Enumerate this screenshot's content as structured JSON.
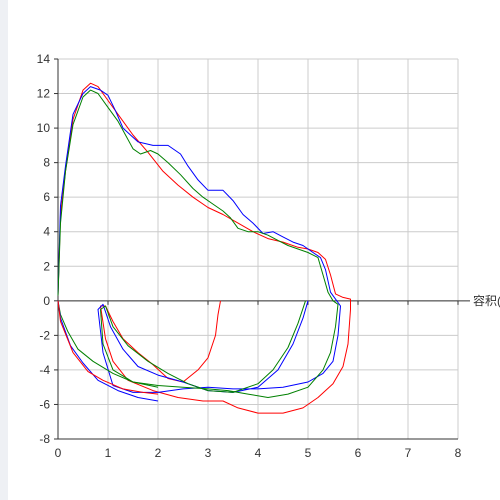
{
  "chart_data": {
    "type": "line",
    "xlabel": "容积(L)",
    "ylabel": "",
    "xlim": [
      0,
      8
    ],
    "ylim": [
      -8,
      14
    ],
    "x_ticks": [
      0,
      1,
      2,
      3,
      4,
      5,
      6,
      7,
      8
    ],
    "y_ticks": [
      -8,
      -6,
      -4,
      -2,
      0,
      2,
      4,
      6,
      8,
      10,
      12,
      14
    ],
    "grid": true,
    "legend": "none",
    "series": [
      {
        "color": "#ff0000",
        "points": [
          [
            0.0,
            0.3
          ],
          [
            0.05,
            5.0
          ],
          [
            0.15,
            7.5
          ],
          [
            0.3,
            10.5
          ],
          [
            0.5,
            12.2
          ],
          [
            0.65,
            12.6
          ],
          [
            0.8,
            12.4
          ],
          [
            1.0,
            11.6
          ],
          [
            1.2,
            10.8
          ],
          [
            1.5,
            9.6
          ],
          [
            1.8,
            8.6
          ],
          [
            2.1,
            7.5
          ],
          [
            2.4,
            6.7
          ],
          [
            2.7,
            6.0
          ],
          [
            3.0,
            5.4
          ],
          [
            3.3,
            5.0
          ],
          [
            3.6,
            4.5
          ],
          [
            3.9,
            4.0
          ],
          [
            4.2,
            3.6
          ],
          [
            4.5,
            3.4
          ],
          [
            4.8,
            3.1
          ],
          [
            5.0,
            3.0
          ],
          [
            5.2,
            2.8
          ],
          [
            5.35,
            2.4
          ],
          [
            5.45,
            1.5
          ],
          [
            5.55,
            0.4
          ],
          [
            5.7,
            0.2
          ],
          [
            5.85,
            0.1
          ],
          [
            5.85,
            -0.5
          ],
          [
            5.8,
            -2.5
          ],
          [
            5.7,
            -3.8
          ],
          [
            5.5,
            -4.8
          ],
          [
            5.2,
            -5.6
          ],
          [
            4.9,
            -6.2
          ],
          [
            4.5,
            -6.5
          ],
          [
            4.0,
            -6.5
          ],
          [
            3.6,
            -6.2
          ],
          [
            3.3,
            -5.8
          ],
          [
            2.9,
            -5.8
          ],
          [
            2.4,
            -5.6
          ],
          [
            1.9,
            -5.2
          ],
          [
            1.4,
            -4.6
          ],
          [
            1.1,
            -3.5
          ],
          [
            0.95,
            -2.2
          ],
          [
            0.85,
            -0.3
          ],
          [
            0.95,
            -0.3
          ],
          [
            1.1,
            -1.2
          ],
          [
            1.3,
            -2.2
          ],
          [
            1.6,
            -3.0
          ],
          [
            1.9,
            -3.7
          ],
          [
            2.2,
            -4.5
          ],
          [
            2.5,
            -4.7
          ],
          [
            2.8,
            -4.0
          ],
          [
            3.0,
            -3.3
          ],
          [
            3.15,
            -2.0
          ],
          [
            3.2,
            -0.8
          ],
          [
            3.25,
            0.0
          ]
        ]
      },
      {
        "color": "#0000ff",
        "points": [
          [
            0.0,
            0.3
          ],
          [
            0.05,
            5.5
          ],
          [
            0.15,
            7.8
          ],
          [
            0.3,
            10.8
          ],
          [
            0.5,
            12.0
          ],
          [
            0.65,
            12.4
          ],
          [
            0.85,
            12.2
          ],
          [
            1.0,
            11.9
          ],
          [
            1.15,
            11.0
          ],
          [
            1.3,
            10.0
          ],
          [
            1.6,
            9.2
          ],
          [
            1.9,
            9.0
          ],
          [
            2.2,
            9.0
          ],
          [
            2.45,
            8.5
          ],
          [
            2.6,
            7.8
          ],
          [
            2.8,
            7.0
          ],
          [
            3.0,
            6.4
          ],
          [
            3.3,
            6.4
          ],
          [
            3.5,
            5.8
          ],
          [
            3.7,
            5.0
          ],
          [
            3.9,
            4.5
          ],
          [
            4.1,
            3.9
          ],
          [
            4.3,
            4.0
          ],
          [
            4.5,
            3.7
          ],
          [
            4.7,
            3.4
          ],
          [
            4.9,
            3.2
          ],
          [
            5.1,
            2.8
          ],
          [
            5.25,
            2.5
          ],
          [
            5.35,
            1.8
          ],
          [
            5.45,
            0.5
          ],
          [
            5.55,
            0.1
          ],
          [
            5.65,
            -0.3
          ],
          [
            5.6,
            -2.0
          ],
          [
            5.5,
            -3.5
          ],
          [
            5.3,
            -4.2
          ],
          [
            5.0,
            -4.7
          ],
          [
            4.5,
            -5.0
          ],
          [
            4.0,
            -5.1
          ],
          [
            3.5,
            -5.1
          ],
          [
            3.0,
            -5.0
          ],
          [
            2.5,
            -5.1
          ],
          [
            2.0,
            -5.3
          ],
          [
            1.5,
            -5.3
          ],
          [
            1.1,
            -4.9
          ],
          [
            0.9,
            -3.0
          ],
          [
            0.8,
            -0.5
          ],
          [
            0.9,
            -0.2
          ],
          [
            1.05,
            -1.5
          ],
          [
            1.3,
            -2.8
          ],
          [
            1.6,
            -3.8
          ],
          [
            2.0,
            -4.3
          ],
          [
            2.5,
            -4.7
          ],
          [
            3.0,
            -5.2
          ],
          [
            3.5,
            -5.3
          ],
          [
            4.0,
            -5.0
          ],
          [
            4.4,
            -4.0
          ],
          [
            4.7,
            -2.5
          ],
          [
            4.9,
            -1.0
          ],
          [
            5.0,
            0.0
          ]
        ]
      },
      {
        "color": "#008000",
        "points": [
          [
            0.0,
            0.3
          ],
          [
            0.05,
            4.5
          ],
          [
            0.15,
            7.5
          ],
          [
            0.3,
            10.2
          ],
          [
            0.5,
            11.8
          ],
          [
            0.65,
            12.2
          ],
          [
            0.8,
            12.0
          ],
          [
            1.0,
            11.2
          ],
          [
            1.2,
            10.4
          ],
          [
            1.35,
            9.6
          ],
          [
            1.5,
            8.8
          ],
          [
            1.65,
            8.5
          ],
          [
            1.85,
            8.7
          ],
          [
            2.0,
            8.5
          ],
          [
            2.2,
            8.0
          ],
          [
            2.45,
            7.3
          ],
          [
            2.7,
            6.5
          ],
          [
            2.9,
            6.0
          ],
          [
            3.1,
            5.6
          ],
          [
            3.3,
            5.2
          ],
          [
            3.45,
            4.8
          ],
          [
            3.6,
            4.2
          ],
          [
            3.8,
            4.0
          ],
          [
            4.0,
            4.0
          ],
          [
            4.2,
            3.8
          ],
          [
            4.4,
            3.5
          ],
          [
            4.6,
            3.2
          ],
          [
            4.8,
            3.0
          ],
          [
            5.0,
            2.8
          ],
          [
            5.2,
            2.5
          ],
          [
            5.3,
            1.5
          ],
          [
            5.4,
            0.5
          ],
          [
            5.5,
            0.0
          ],
          [
            5.6,
            -0.2
          ],
          [
            5.55,
            -1.5
          ],
          [
            5.45,
            -3.0
          ],
          [
            5.3,
            -4.0
          ],
          [
            5.0,
            -5.0
          ],
          [
            4.6,
            -5.4
          ],
          [
            4.2,
            -5.6
          ],
          [
            3.8,
            -5.4
          ],
          [
            3.4,
            -5.2
          ],
          [
            3.0,
            -5.1
          ],
          [
            2.5,
            -5.0
          ],
          [
            2.0,
            -4.9
          ],
          [
            1.5,
            -4.7
          ],
          [
            1.1,
            -4.0
          ],
          [
            0.9,
            -2.5
          ],
          [
            0.85,
            -0.5
          ],
          [
            0.95,
            -0.3
          ],
          [
            1.1,
            -1.5
          ],
          [
            1.4,
            -2.6
          ],
          [
            1.8,
            -3.5
          ],
          [
            2.2,
            -4.2
          ],
          [
            2.6,
            -4.8
          ],
          [
            3.0,
            -5.2
          ],
          [
            3.5,
            -5.3
          ],
          [
            4.0,
            -4.8
          ],
          [
            4.3,
            -4.0
          ],
          [
            4.6,
            -2.7
          ],
          [
            4.8,
            -1.3
          ],
          [
            4.95,
            0.0
          ]
        ]
      },
      {
        "color": "#008000",
        "points": [
          [
            0.0,
            0.0
          ],
          [
            0.05,
            -0.8
          ],
          [
            0.2,
            -1.8
          ],
          [
            0.4,
            -2.8
          ],
          [
            0.7,
            -3.5
          ],
          [
            1.1,
            -4.2
          ],
          [
            1.5,
            -4.7
          ],
          [
            2.0,
            -5.0
          ]
        ]
      },
      {
        "color": "#0000ff",
        "points": [
          [
            0.0,
            0.0
          ],
          [
            0.05,
            -1.0
          ],
          [
            0.25,
            -2.6
          ],
          [
            0.5,
            -3.6
          ],
          [
            0.8,
            -4.6
          ],
          [
            1.2,
            -5.2
          ],
          [
            1.6,
            -5.6
          ],
          [
            2.0,
            -5.8
          ]
        ]
      },
      {
        "color": "#ff0000",
        "points": [
          [
            0.0,
            0.0
          ],
          [
            0.05,
            -1.2
          ],
          [
            0.3,
            -3.0
          ],
          [
            0.6,
            -4.1
          ],
          [
            0.9,
            -4.6
          ],
          [
            1.3,
            -5.1
          ],
          [
            1.7,
            -5.3
          ],
          [
            2.0,
            -5.4
          ]
        ]
      }
    ]
  }
}
